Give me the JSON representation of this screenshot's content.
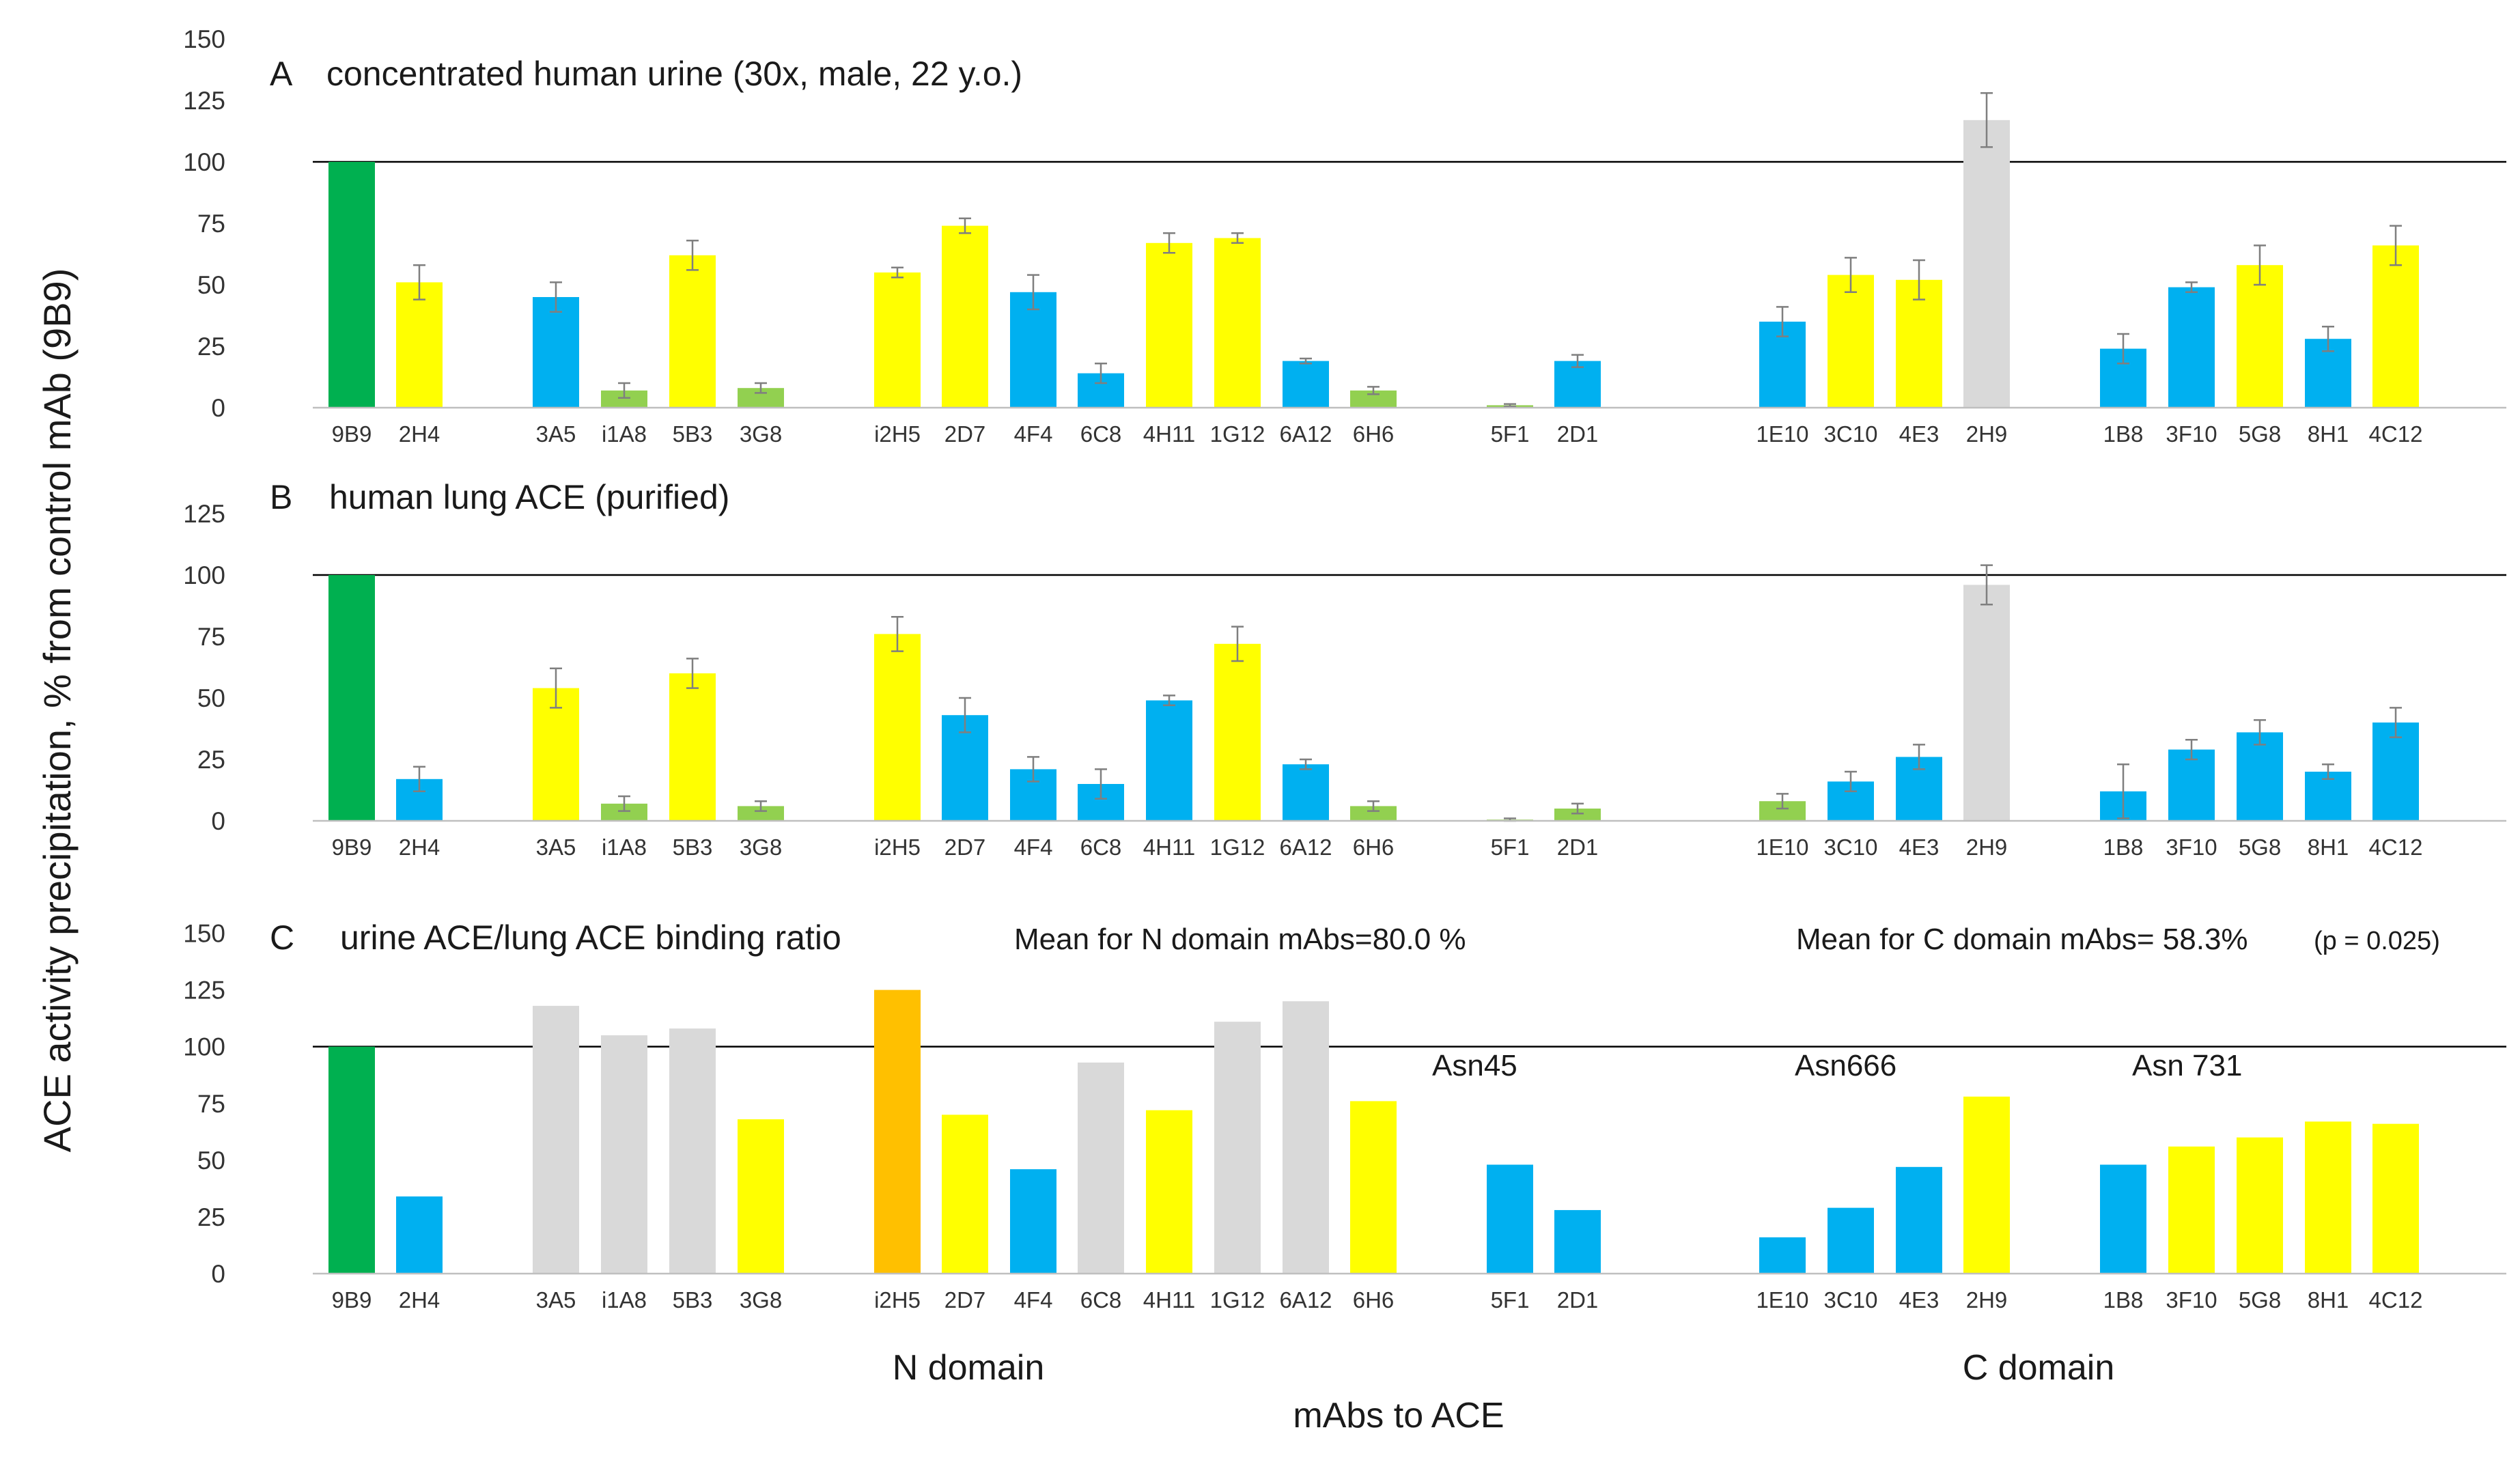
{
  "chart_data": {
    "type": "bar",
    "ylabel": "ACE activity precipitation, % from control mAb (9B9)",
    "xlabel": "mAbs to ACE",
    "domain_labels": {
      "n": "N domain",
      "c": "C domain"
    },
    "categories": [
      "9B9",
      "2H4",
      "3A5",
      "i1A8",
      "5B3",
      "3G8",
      "i2H5",
      "2D7",
      "4F4",
      "6C8",
      "4H11",
      "1G12",
      "6A12",
      "6H6",
      "5F1",
      "2D1",
      "1E10",
      "3C10",
      "4E3",
      "2H9",
      "1B8",
      "3F10",
      "5G8",
      "8H1",
      "4C12"
    ],
    "colors": {
      "green": "#00b050",
      "yellow": "#ffff00",
      "blue": "#00b0f0",
      "lightgreen": "#92d050",
      "gray": "#d9d9d9",
      "orange": "#ffc000",
      "axis": "#000000",
      "errorbar": "#7f7f7f"
    },
    "panels": [
      {
        "letter": "A",
        "title": "concentrated human urine (30x, male, 22 y.o.)",
        "ylim": [
          0,
          150
        ],
        "yticks": [
          0,
          25,
          50,
          75,
          100,
          125,
          150
        ],
        "reference_line": 100,
        "values": [
          100,
          51,
          45,
          7,
          62,
          8,
          55,
          74,
          47,
          14,
          67,
          69,
          19,
          7,
          1,
          19,
          35,
          54,
          52,
          117,
          24,
          49,
          58,
          28,
          66
        ],
        "errors": [
          0,
          7,
          6,
          3,
          6,
          2,
          2,
          3,
          7,
          4,
          4,
          2,
          1,
          1.5,
          0.5,
          2.5,
          6,
          7,
          8,
          11,
          6,
          2,
          8,
          5,
          8
        ],
        "bar_colors": [
          "green",
          "yellow",
          "blue",
          "lightgreen",
          "yellow",
          "lightgreen",
          "yellow",
          "yellow",
          "blue",
          "blue",
          "yellow",
          "yellow",
          "blue",
          "lightgreen",
          "lightgreen",
          "blue",
          "blue",
          "yellow",
          "yellow",
          "gray",
          "blue",
          "blue",
          "yellow",
          "blue",
          "yellow"
        ]
      },
      {
        "letter": "B",
        "title": "human lung ACE (purified)",
        "ylim": [
          0,
          150
        ],
        "yticks": [
          0,
          25,
          50,
          75,
          100,
          125
        ],
        "reference_line": 100,
        "values": [
          100,
          17,
          54,
          7,
          60,
          6,
          76,
          43,
          21,
          15,
          49,
          72,
          23,
          6,
          0.5,
          5,
          8,
          16,
          26,
          96,
          12,
          29,
          36,
          20,
          40
        ],
        "errors": [
          0,
          5,
          8,
          3,
          6,
          2,
          7,
          7,
          5,
          6,
          2,
          7,
          2,
          2,
          0.5,
          2,
          3,
          4,
          5,
          8,
          11,
          4,
          5,
          3,
          6
        ],
        "bar_colors": [
          "green",
          "blue",
          "yellow",
          "lightgreen",
          "yellow",
          "lightgreen",
          "yellow",
          "blue",
          "blue",
          "blue",
          "blue",
          "yellow",
          "blue",
          "lightgreen",
          "lightgreen",
          "lightgreen",
          "lightgreen",
          "blue",
          "blue",
          "gray",
          "blue",
          "blue",
          "blue",
          "blue",
          "blue"
        ]
      },
      {
        "letter": "C",
        "title": "urine ACE/lung ACE binding ratio",
        "ylim": [
          0,
          150
        ],
        "yticks": [
          0,
          25,
          50,
          75,
          100,
          125,
          150
        ],
        "reference_line": 100,
        "values": [
          100,
          34,
          118,
          105,
          108,
          68,
          125,
          70,
          46,
          93,
          72,
          111,
          120,
          76,
          48,
          28,
          16,
          29,
          47,
          78,
          48,
          56,
          60,
          67,
          66
        ],
        "bar_colors": [
          "green",
          "blue",
          "gray",
          "gray",
          "gray",
          "yellow",
          "orange",
          "yellow",
          "blue",
          "gray",
          "yellow",
          "gray",
          "gray",
          "yellow",
          "blue",
          "blue",
          "blue",
          "blue",
          "blue",
          "yellow",
          "blue",
          "yellow",
          "yellow",
          "yellow",
          "yellow"
        ],
        "notes": {
          "mean_n": "Mean for N domain mAbs=80.0 %",
          "mean_c": "Mean for C domain mAbs= 58.3%",
          "p_value": "(p = 0.025)",
          "asn45": "Asn45",
          "asn666": "Asn666",
          "asn731": "Asn 731"
        }
      }
    ]
  }
}
